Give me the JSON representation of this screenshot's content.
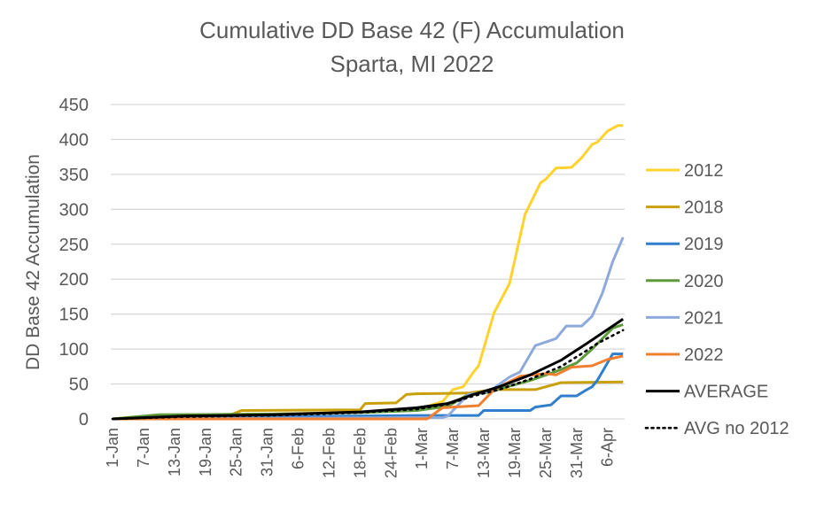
{
  "chart_data": {
    "type": "line",
    "title": "Cumulative DD Base 42 (F) Accumulation",
    "subtitle": "Sparta, MI 2022",
    "xlabel": "",
    "ylabel": "DD Base 42 Accumulation",
    "ylim": [
      0,
      450
    ],
    "yticks": [
      0,
      50,
      100,
      150,
      200,
      250,
      300,
      350,
      400,
      450
    ],
    "xlim": [
      "01-01",
      "04-10"
    ],
    "xtick_labels": [
      "1-Jan",
      "7-Jan",
      "13-Jan",
      "19-Jan",
      "25-Jan",
      "31-Jan",
      "6-Feb",
      "12-Feb",
      "18-Feb",
      "24-Feb",
      "1-Mar",
      "7-Mar",
      "13-Mar",
      "19-Mar",
      "25-Mar",
      "31-Mar",
      "6-Apr"
    ],
    "grid": "horizontal",
    "legend_position": "right",
    "series": [
      {
        "name": "2012",
        "color": "#FFD22E",
        "dash": "solid",
        "points": [
          [
            "01-01",
            0
          ],
          [
            "01-08",
            4
          ],
          [
            "01-15",
            6
          ],
          [
            "02-01",
            7
          ],
          [
            "02-15",
            9
          ],
          [
            "03-01",
            13
          ],
          [
            "03-06",
            25
          ],
          [
            "03-08",
            42
          ],
          [
            "03-10",
            46
          ],
          [
            "03-12",
            67
          ],
          [
            "03-13",
            76
          ],
          [
            "03-16",
            152
          ],
          [
            "03-19",
            194
          ],
          [
            "03-22",
            293
          ],
          [
            "03-25",
            338
          ],
          [
            "03-26",
            343
          ],
          [
            "03-28",
            359
          ],
          [
            "03-31",
            360
          ],
          [
            "04-02",
            374
          ],
          [
            "04-04",
            393
          ],
          [
            "04-05",
            396
          ],
          [
            "04-07",
            412
          ],
          [
            "04-09",
            420
          ],
          [
            "04-10",
            420
          ]
        ]
      },
      {
        "name": "2018",
        "color": "#C9A00C",
        "dash": "solid",
        "points": [
          [
            "01-01",
            0
          ],
          [
            "01-10",
            5
          ],
          [
            "01-24",
            6
          ],
          [
            "01-26",
            12
          ],
          [
            "02-18",
            13
          ],
          [
            "02-19",
            22
          ],
          [
            "02-25",
            23
          ],
          [
            "02-27",
            35
          ],
          [
            "03-01",
            36
          ],
          [
            "03-11",
            37
          ],
          [
            "03-16",
            42
          ],
          [
            "03-24",
            42
          ],
          [
            "03-29",
            52
          ],
          [
            "04-10",
            53
          ]
        ]
      },
      {
        "name": "2019",
        "color": "#2F7FCC",
        "dash": "solid",
        "points": [
          [
            "01-01",
            0
          ],
          [
            "02-01",
            3
          ],
          [
            "03-01",
            5
          ],
          [
            "03-13",
            5
          ],
          [
            "03-14",
            12
          ],
          [
            "03-23",
            12
          ],
          [
            "03-24",
            17
          ],
          [
            "03-27",
            20
          ],
          [
            "03-29",
            33
          ],
          [
            "04-01",
            33
          ],
          [
            "04-03",
            42
          ],
          [
            "04-04",
            46
          ],
          [
            "04-05",
            55
          ],
          [
            "04-08",
            93
          ],
          [
            "04-10",
            93
          ]
        ]
      },
      {
        "name": "2020",
        "color": "#5E993A",
        "dash": "solid",
        "points": [
          [
            "01-01",
            0
          ],
          [
            "01-10",
            6
          ],
          [
            "02-01",
            7
          ],
          [
            "02-18",
            9
          ],
          [
            "03-01",
            12
          ],
          [
            "03-07",
            18
          ],
          [
            "03-11",
            35
          ],
          [
            "03-15",
            38
          ],
          [
            "03-18",
            45
          ],
          [
            "03-23",
            55
          ],
          [
            "03-28",
            68
          ],
          [
            "04-01",
            80
          ],
          [
            "04-04",
            100
          ],
          [
            "04-06",
            115
          ],
          [
            "04-08",
            130
          ],
          [
            "04-10",
            135
          ]
        ]
      },
      {
        "name": "2021",
        "color": "#8EAADD",
        "dash": "solid",
        "points": [
          [
            "01-01",
            0
          ],
          [
            "03-06",
            2
          ],
          [
            "03-07",
            4
          ],
          [
            "03-11",
            35
          ],
          [
            "03-15",
            39
          ],
          [
            "03-19",
            60
          ],
          [
            "03-21",
            67
          ],
          [
            "03-24",
            105
          ],
          [
            "03-28",
            115
          ],
          [
            "03-30",
            133
          ],
          [
            "04-02",
            133
          ],
          [
            "04-04",
            147
          ],
          [
            "04-06",
            180
          ],
          [
            "04-08",
            225
          ],
          [
            "04-10",
            260
          ]
        ]
      },
      {
        "name": "2022",
        "color": "#F07F30",
        "dash": "solid",
        "points": [
          [
            "01-01",
            0
          ],
          [
            "03-03",
            0
          ],
          [
            "03-06",
            16
          ],
          [
            "03-13",
            19
          ],
          [
            "03-16",
            42
          ],
          [
            "03-21",
            61
          ],
          [
            "03-26",
            65
          ],
          [
            "03-28",
            63
          ],
          [
            "03-31",
            74
          ],
          [
            "04-04",
            76
          ],
          [
            "04-07",
            85
          ],
          [
            "04-10",
            90
          ]
        ]
      },
      {
        "name": "AVERAGE",
        "color": "#000000",
        "dash": "solid",
        "points": [
          [
            "01-01",
            0
          ],
          [
            "01-15",
            4
          ],
          [
            "02-01",
            6
          ],
          [
            "02-18",
            10
          ],
          [
            "03-01",
            16
          ],
          [
            "03-07",
            22
          ],
          [
            "03-12",
            35
          ],
          [
            "03-17",
            46
          ],
          [
            "03-23",
            63
          ],
          [
            "03-29",
            84
          ],
          [
            "04-03",
            108
          ],
          [
            "04-05",
            118
          ],
          [
            "04-10",
            143
          ]
        ]
      },
      {
        "name": "AVG no 2012",
        "color": "#000000",
        "dash": "dotted",
        "points": [
          [
            "01-01",
            0
          ],
          [
            "01-15",
            3
          ],
          [
            "02-01",
            5
          ],
          [
            "02-18",
            9
          ],
          [
            "03-01",
            14
          ],
          [
            "03-07",
            21
          ],
          [
            "03-12",
            33
          ],
          [
            "03-17",
            42
          ],
          [
            "03-23",
            57
          ],
          [
            "03-29",
            75
          ],
          [
            "04-03",
            98
          ],
          [
            "04-05",
            108
          ],
          [
            "04-10",
            127
          ]
        ]
      }
    ]
  }
}
